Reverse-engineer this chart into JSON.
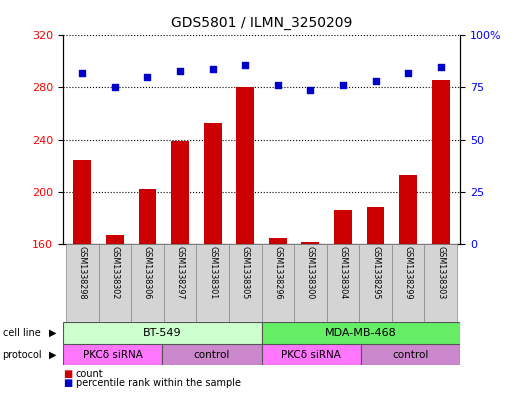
{
  "title": "GDS5801 / ILMN_3250209",
  "samples": [
    "GSM1338298",
    "GSM1338302",
    "GSM1338306",
    "GSM1338297",
    "GSM1338301",
    "GSM1338305",
    "GSM1338296",
    "GSM1338300",
    "GSM1338304",
    "GSM1338295",
    "GSM1338299",
    "GSM1338303"
  ],
  "bar_values": [
    224,
    167,
    202,
    239,
    253,
    280,
    164,
    161,
    186,
    188,
    213,
    286
  ],
  "dot_values": [
    82,
    75,
    80,
    83,
    84,
    86,
    76,
    74,
    76,
    78,
    82,
    85
  ],
  "bar_color": "#cc0000",
  "dot_color": "#0000cc",
  "ylim_left": [
    160,
    320
  ],
  "ylim_right": [
    0,
    100
  ],
  "yticks_left": [
    160,
    200,
    240,
    280,
    320
  ],
  "yticks_right": [
    0,
    25,
    50,
    75,
    100
  ],
  "ytick_labels_right": [
    "0",
    "25",
    "50",
    "75",
    "100%"
  ],
  "cell_line_groups": [
    {
      "label": "BT-549",
      "start": 0,
      "end": 5,
      "color": "#ccffcc"
    },
    {
      "label": "MDA-MB-468",
      "start": 6,
      "end": 11,
      "color": "#66ee66"
    }
  ],
  "protocol_groups": [
    {
      "label": "PKCδ siRNA",
      "start": 0,
      "end": 2,
      "color": "#ff77ff"
    },
    {
      "label": "control",
      "start": 3,
      "end": 5,
      "color": "#cc88cc"
    },
    {
      "label": "PKCδ siRNA",
      "start": 6,
      "end": 8,
      "color": "#ff77ff"
    },
    {
      "label": "control",
      "start": 9,
      "end": 11,
      "color": "#cc88cc"
    }
  ],
  "sample_bg_color": "#d4d4d4",
  "legend_count_color": "#cc0000",
  "legend_dot_color": "#0000cc",
  "legend_count_label": "count",
  "legend_dot_label": "percentile rank within the sample"
}
